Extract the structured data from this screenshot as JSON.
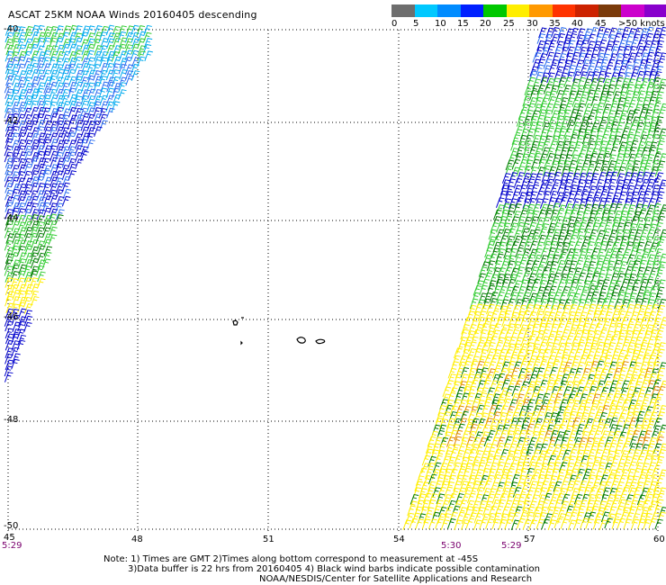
{
  "title": "ASCAT 25KM NOAA Winds 20160405 descending",
  "legend": {
    "colors": [
      "#6e6e6e",
      "#00c8ff",
      "#008cff",
      "#0020ff",
      "#00c800",
      "#ffee00",
      "#ff9900",
      "#ff3300",
      "#cc2200",
      "#7a3a0a",
      "#cc00cc",
      "#8800cc",
      "#3a0066"
    ],
    "labels": [
      "0",
      "5",
      "10",
      "15",
      "20",
      "25",
      "30",
      "35",
      "40",
      "45",
      ">50 knots"
    ]
  },
  "axes": {
    "x_ticks": [
      "45",
      "48",
      "51",
      "54",
      "57",
      "60"
    ],
    "y_ticks": [
      "-40",
      "-42",
      "-44",
      "-46",
      "-48",
      "-50"
    ]
  },
  "times": {
    "left": "5:29",
    "mid": "5:30",
    "right": "5:29"
  },
  "notes": {
    "line1": "Note: 1) Times are GMT 2)Times along bottom correspond to measurement at -45S",
    "line2": "3)Data buffer is 22 hrs from 20160405 4) Black wind barbs indicate possible contamination",
    "line3": "NOAA/NESDIS/Center for Satellite Applications and Research"
  },
  "barb_colors": {
    "light_green": "#33cc33",
    "dark_green": "#007a00",
    "yellow": "#ffee00",
    "orange": "#e08a00",
    "blue": "#0000cc",
    "cyan": "#00aaee",
    "mid_blue": "#2a6cf0"
  }
}
